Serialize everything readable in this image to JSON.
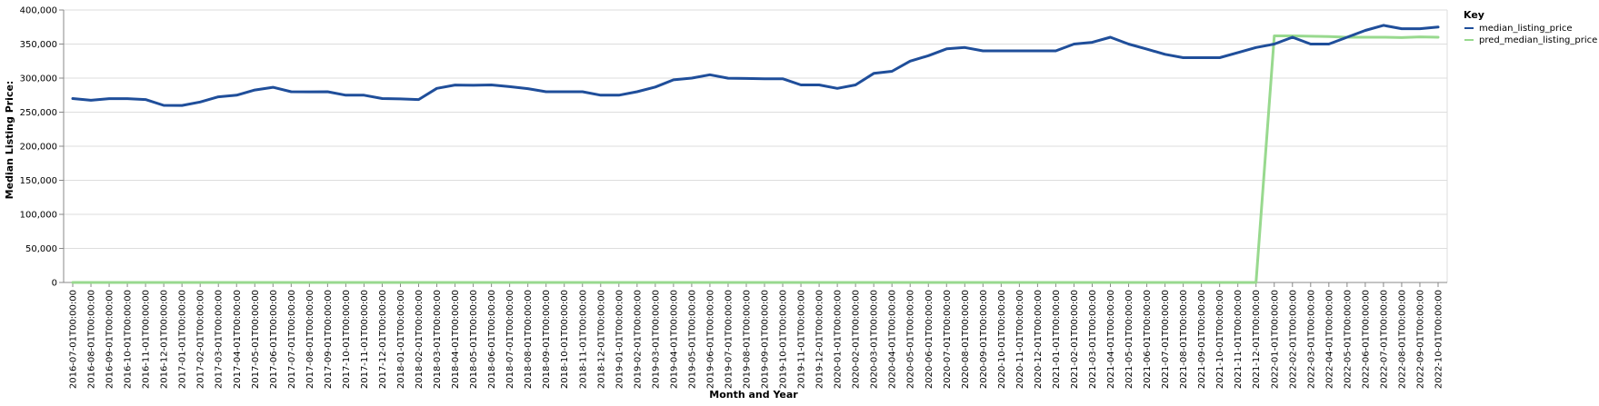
{
  "chart_data": {
    "type": "line",
    "title": "",
    "xlabel": "Month and Year",
    "ylabel": "Median Listing Price:",
    "ylim": [
      0,
      400000
    ],
    "y_ticks": [
      "0",
      "50,000",
      "100,000",
      "150,000",
      "200,000",
      "250,000",
      "300,000",
      "350,000",
      "400,000"
    ],
    "grid": true,
    "legend_position": "top-right",
    "legend_title": "Key",
    "categories": [
      "2016-07-01T00:00:00",
      "2016-08-01T00:00:00",
      "2016-09-01T00:00:00",
      "2016-10-01T00:00:00",
      "2016-11-01T00:00:00",
      "2016-12-01T00:00:00",
      "2017-01-01T00:00:00",
      "2017-02-01T00:00:00",
      "2017-03-01T00:00:00",
      "2017-04-01T00:00:00",
      "2017-05-01T00:00:00",
      "2017-06-01T00:00:00",
      "2017-07-01T00:00:00",
      "2017-08-01T00:00:00",
      "2017-09-01T00:00:00",
      "2017-10-01T00:00:00",
      "2017-11-01T00:00:00",
      "2017-12-01T00:00:00",
      "2018-01-01T00:00:00",
      "2018-02-01T00:00:00",
      "2018-03-01T00:00:00",
      "2018-04-01T00:00:00",
      "2018-05-01T00:00:00",
      "2018-06-01T00:00:00",
      "2018-07-01T00:00:00",
      "2018-08-01T00:00:00",
      "2018-09-01T00:00:00",
      "2018-10-01T00:00:00",
      "2018-11-01T00:00:00",
      "2018-12-01T00:00:00",
      "2019-01-01T00:00:00",
      "2019-02-01T00:00:00",
      "2019-03-01T00:00:00",
      "2019-04-01T00:00:00",
      "2019-05-01T00:00:00",
      "2019-06-01T00:00:00",
      "2019-07-01T00:00:00",
      "2019-08-01T00:00:00",
      "2019-09-01T00:00:00",
      "2019-10-01T00:00:00",
      "2019-11-01T00:00:00",
      "2019-12-01T00:00:00",
      "2020-01-01T00:00:00",
      "2020-02-01T00:00:00",
      "2020-03-01T00:00:00",
      "2020-04-01T00:00:00",
      "2020-05-01T00:00:00",
      "2020-06-01T00:00:00",
      "2020-07-01T00:00:00",
      "2020-08-01T00:00:00",
      "2020-09-01T00:00:00",
      "2020-10-01T00:00:00",
      "2020-11-01T00:00:00",
      "2020-12-01T00:00:00",
      "2021-01-01T00:00:00",
      "2021-02-01T00:00:00",
      "2021-03-01T00:00:00",
      "2021-04-01T00:00:00",
      "2021-05-01T00:00:00",
      "2021-06-01T00:00:00",
      "2021-07-01T00:00:00",
      "2021-08-01T00:00:00",
      "2021-09-01T00:00:00",
      "2021-10-01T00:00:00",
      "2021-11-01T00:00:00",
      "2021-12-01T00:00:00",
      "2022-01-01T00:00:00",
      "2022-02-01T00:00:00",
      "2022-03-01T00:00:00",
      "2022-04-01T00:00:00",
      "2022-05-01T00:00:00",
      "2022-06-01T00:00:00",
      "2022-07-01T00:00:00",
      "2022-08-01T00:00:00",
      "2022-09-01T00:00:00",
      "2022-10-01T00:00:00"
    ],
    "series": [
      {
        "name": "median_listing_price",
        "color": "#1f4e9a",
        "values": [
          270000,
          267500,
          269900,
          269900,
          268500,
          260000,
          259900,
          265000,
          272500,
          275000,
          282500,
          286500,
          280000,
          279900,
          280000,
          275000,
          274900,
          270000,
          269500,
          268500,
          285000,
          289900,
          289500,
          290000,
          287500,
          284500,
          280000,
          280000,
          280000,
          275000,
          274900,
          280000,
          287000,
          297500,
          300000,
          305000,
          299900,
          299500,
          299000,
          299000,
          290000,
          290000,
          285000,
          290000,
          307000,
          310000,
          325000,
          333000,
          343000,
          345000,
          340000,
          340000,
          340000,
          340000,
          340000,
          350000,
          352500,
          360000,
          350000,
          342500,
          335000,
          330000,
          330000,
          330000,
          337500,
          344900,
          350000,
          360000,
          350000,
          350000,
          360000,
          370000,
          377500,
          372500,
          372500,
          375000
        ]
      },
      {
        "name": "pred_median_listing_price",
        "color": "#98d98e",
        "values": [
          0,
          0,
          0,
          0,
          0,
          0,
          0,
          0,
          0,
          0,
          0,
          0,
          0,
          0,
          0,
          0,
          0,
          0,
          0,
          0,
          0,
          0,
          0,
          0,
          0,
          0,
          0,
          0,
          0,
          0,
          0,
          0,
          0,
          0,
          0,
          0,
          0,
          0,
          0,
          0,
          0,
          0,
          0,
          0,
          0,
          0,
          0,
          0,
          0,
          0,
          0,
          0,
          0,
          0,
          0,
          0,
          0,
          0,
          0,
          0,
          0,
          0,
          0,
          0,
          0,
          0,
          362000,
          362000,
          361500,
          361000,
          360000,
          360000,
          360000,
          359500,
          360500,
          360000
        ]
      }
    ]
  }
}
